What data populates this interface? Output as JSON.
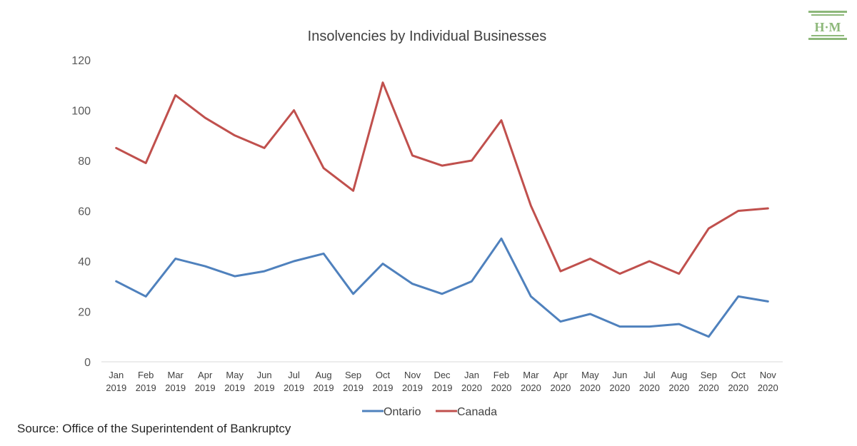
{
  "chart_data": {
    "type": "line",
    "title": "Insolvencies by Individual Businesses",
    "xlabel": "",
    "ylabel": "",
    "ylim": [
      0,
      120
    ],
    "yticks": [
      "0",
      "20",
      "40",
      "60",
      "80",
      "100",
      "120"
    ],
    "grid": false,
    "legend_position": "bottom",
    "categories": [
      [
        "Jan",
        "2019"
      ],
      [
        "Feb",
        "2019"
      ],
      [
        "Mar",
        "2019"
      ],
      [
        "Apr",
        "2019"
      ],
      [
        "May",
        "2019"
      ],
      [
        "Jun",
        "2019"
      ],
      [
        "Jul",
        "2019"
      ],
      [
        "Aug",
        "2019"
      ],
      [
        "Sep",
        "2019"
      ],
      [
        "Oct",
        "2019"
      ],
      [
        "Nov",
        "2019"
      ],
      [
        "Dec",
        "2019"
      ],
      [
        "Jan",
        "2020"
      ],
      [
        "Feb",
        "2020"
      ],
      [
        "Mar",
        "2020"
      ],
      [
        "Apr",
        "2020"
      ],
      [
        "May",
        "2020"
      ],
      [
        "Jun",
        "2020"
      ],
      [
        "Jul",
        "2020"
      ],
      [
        "Aug",
        "2020"
      ],
      [
        "Sep",
        "2020"
      ],
      [
        "Oct",
        "2020"
      ],
      [
        "Nov",
        "2020"
      ]
    ],
    "series": [
      {
        "name": "Ontario",
        "color": "#4f81bd",
        "values": [
          32,
          26,
          41,
          38,
          34,
          36,
          40,
          43,
          27,
          39,
          31,
          27,
          32,
          49,
          26,
          16,
          19,
          14,
          14,
          15,
          10,
          26,
          24
        ]
      },
      {
        "name": "Canada",
        "color": "#c0504d",
        "values": [
          85,
          79,
          106,
          97,
          90,
          85,
          100,
          77,
          68,
          111,
          82,
          78,
          80,
          96,
          62,
          36,
          41,
          35,
          40,
          35,
          53,
          60,
          61
        ]
      }
    ]
  },
  "source_text": "Source: Office of the Superintendent of Bankruptcy",
  "logo": {
    "text": "H·M",
    "color": "#8db87a"
  }
}
